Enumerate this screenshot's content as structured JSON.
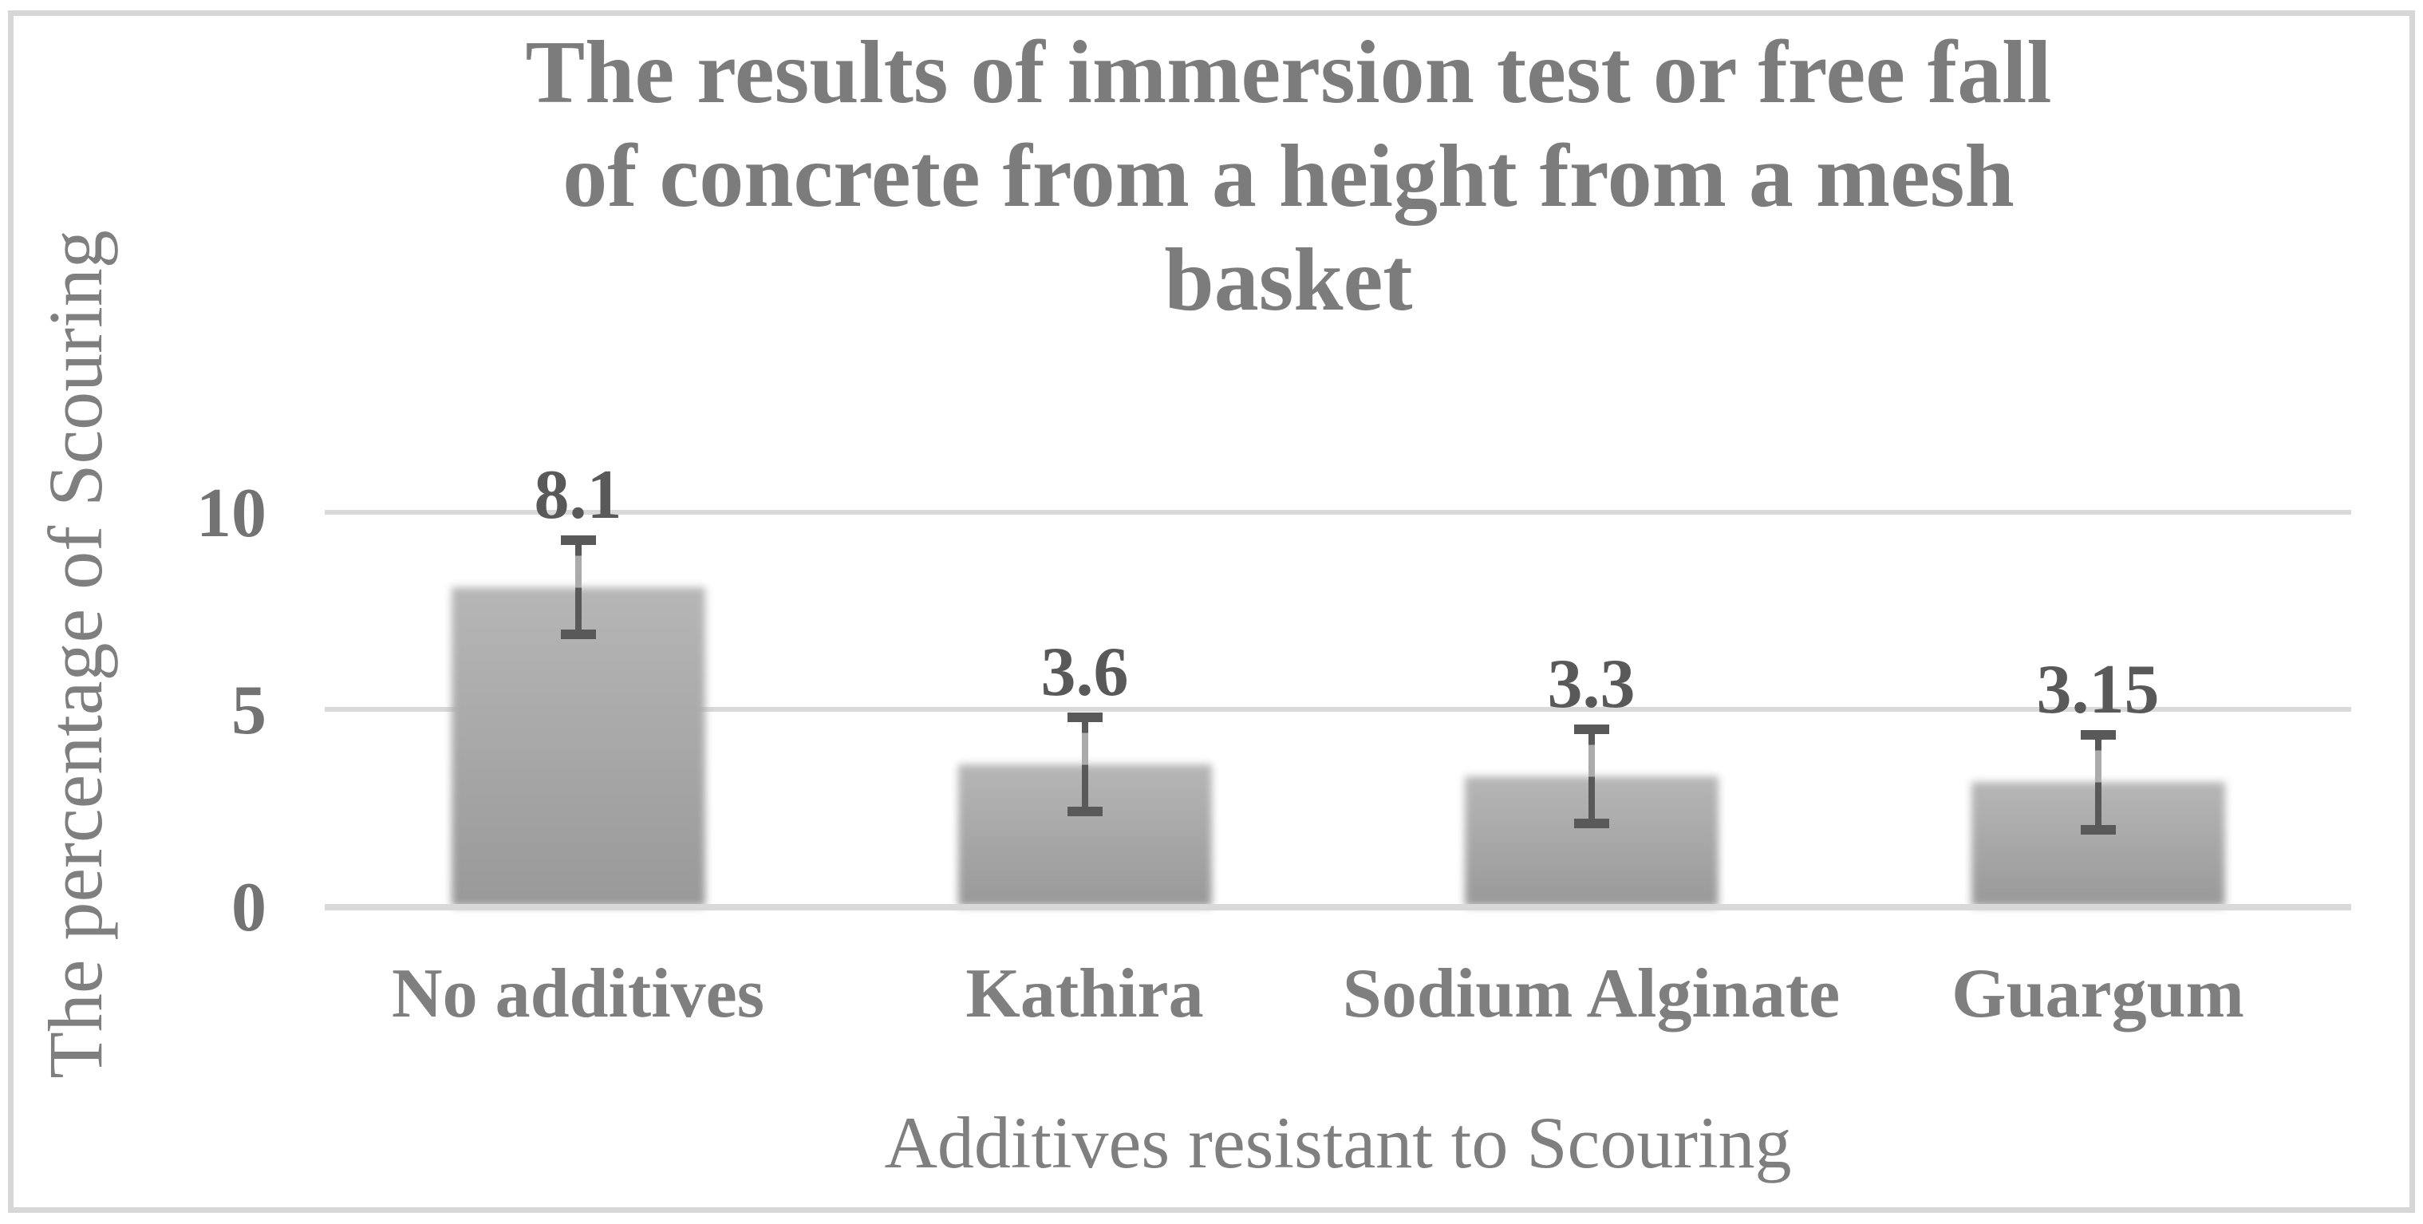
{
  "figure": {
    "background_color": "#ffffff",
    "border_color": "#d7d7d7"
  },
  "chart_data": {
    "type": "bar",
    "title": "The results of immersion test or free fall of concrete from a height from a mesh basket",
    "title_lines": [
      "The results of immersion test or free fall",
      "of concrete from a height from a mesh",
      "basket"
    ],
    "xlabel": "Additives resistant to Scouring",
    "ylabel": "The percentage of Scouring",
    "categories": [
      "No additives",
      "Kathira",
      "Sodium Alginate",
      "Guargum"
    ],
    "values": [
      8.1,
      3.6,
      3.3,
      3.15
    ],
    "value_labels": [
      "8.1",
      "3.6",
      "3.3",
      "3.15"
    ],
    "error_bars": {
      "plus": 1.2,
      "minus": 1.2
    },
    "yticks": [
      "10",
      "5",
      "0"
    ],
    "ytick_values": [
      10,
      5,
      0
    ],
    "ylim": [
      0,
      10
    ],
    "grid": true,
    "legend_position": "none",
    "colors": {
      "bar_top": "#b6b6b6",
      "bar_bottom": "#999999",
      "gridline": "#d9d9d9",
      "axis_line": "#d9d9d9",
      "error_bar": "#595959",
      "error_bar_faded": "#ababab",
      "title_text": "#7c7c7c",
      "label_text": "#7f7f7f",
      "tick_text": "#737373",
      "value_text": "#595959"
    }
  }
}
